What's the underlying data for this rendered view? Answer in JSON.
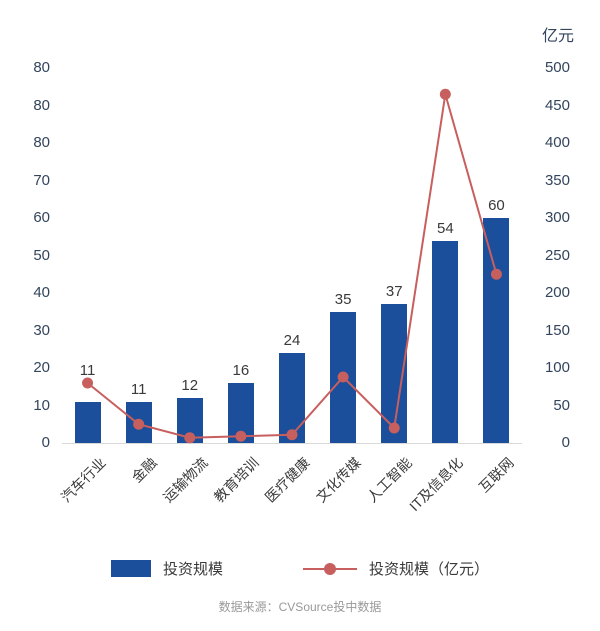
{
  "chart_data": {
    "type": "combo",
    "title": "",
    "categories": [
      "汽车行业",
      "金融",
      "运输物流",
      "教育培训",
      "医疗健康",
      "文化传媒",
      "人工智能",
      "IT及信息化",
      "互联网"
    ],
    "series": [
      {
        "name": "投资规模",
        "type": "bar",
        "axis": "left",
        "color": "#1b4e9b",
        "values": [
          11,
          11,
          12,
          16,
          24,
          35,
          37,
          54,
          60
        ]
      },
      {
        "name": "投资规模（亿元）",
        "type": "line",
        "axis": "right",
        "color": "#c75f5e",
        "values": [
          80,
          25,
          7,
          9,
          11,
          88,
          20,
          465,
          225
        ]
      }
    ],
    "left_axis": {
      "ticks_top_to_bottom": [
        "80",
        "80",
        "80",
        "70",
        "60",
        "50",
        "40",
        "30",
        "20",
        "10",
        "0"
      ],
      "max": 100,
      "min": 0
    },
    "right_axis": {
      "unit": "亿元",
      "ticks_top_to_bottom": [
        "500",
        "450",
        "400",
        "350",
        "300",
        "250",
        "200",
        "150",
        "100",
        "50",
        "0"
      ],
      "max": 500,
      "min": 0
    },
    "legend": [
      "投资规模",
      "投资规模（亿元）"
    ],
    "legend_position": "bottom",
    "grid": false,
    "source": "数据来源：CVSource投中数据"
  }
}
